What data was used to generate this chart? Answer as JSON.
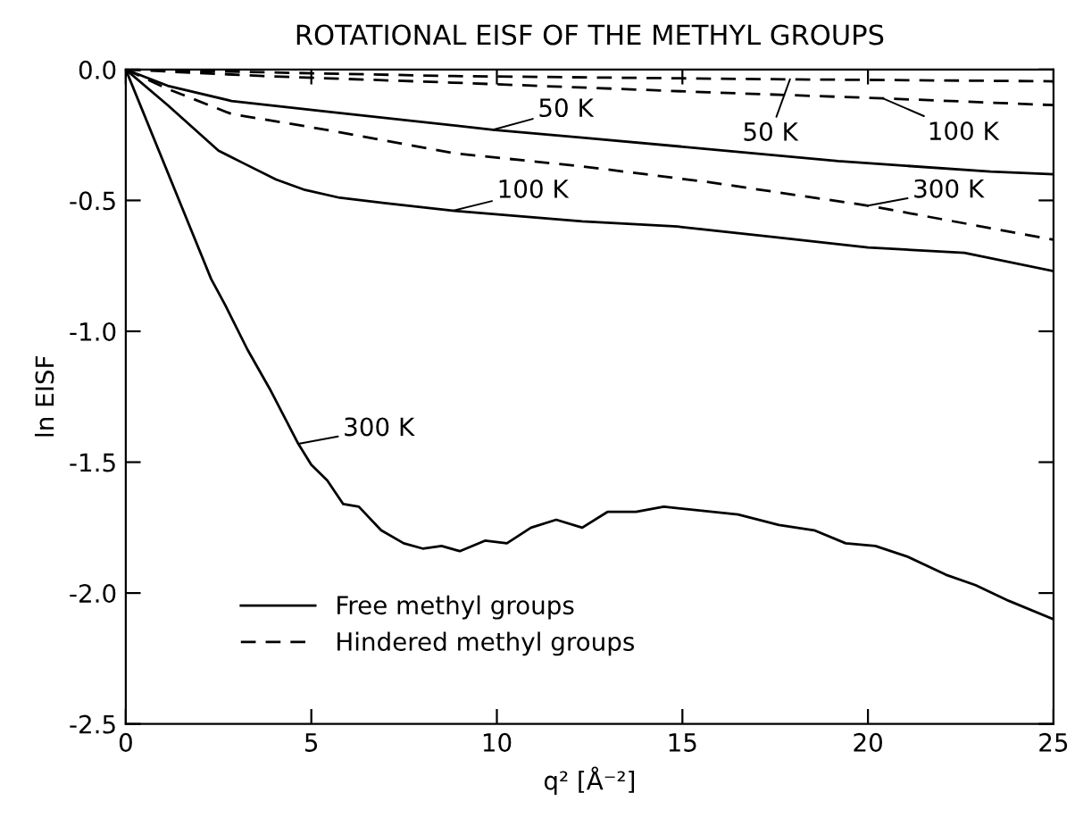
{
  "chart_data": {
    "type": "line",
    "title": "ROTATIONAL EISF OF THE METHYL GROUPS",
    "xlabel": "q² [Å⁻²]",
    "ylabel": "ln EISF",
    "xlim": [
      0,
      25
    ],
    "ylim": [
      -2.5,
      0
    ],
    "xticks": [
      0,
      5,
      10,
      15,
      20,
      25
    ],
    "yticks": [
      {
        "value": -2.5,
        "label": "-2.5"
      },
      {
        "value": -2.0,
        "label": "-2.0"
      },
      {
        "value": -1.5,
        "label": "-1.5"
      },
      {
        "value": -1.0,
        "label": "-1.0"
      },
      {
        "value": -0.5,
        "label": "-0.5"
      },
      {
        "value": 0.0,
        "label": "0.0"
      }
    ],
    "grid": false,
    "legend": "bottom",
    "marker": "none",
    "series": [
      {
        "name": "Free methyl groups",
        "color": "#000000",
        "line_style": "solid",
        "x": [
          0,
          1.13,
          2.85,
          5.4,
          9.9,
          12.3,
          15.4,
          19.2,
          23.3,
          25
        ],
        "values": [
          0,
          -0.062,
          -0.12,
          -0.16,
          -0.23,
          -0.26,
          -0.3,
          -0.35,
          -0.39,
          -0.4
        ]
      },
      {
        "color": "#000000",
        "line_style": "solid",
        "x": [
          0,
          1.13,
          2.5,
          3.2,
          4.05,
          4.83,
          5.77,
          6.97,
          8.86,
          12.3,
          14.87,
          17.45,
          20.0,
          22.6,
          25
        ],
        "values": [
          0,
          -0.136,
          -0.31,
          -0.36,
          -0.42,
          -0.46,
          -0.49,
          -0.51,
          -0.54,
          -0.58,
          -0.6,
          -0.64,
          -0.68,
          -0.7,
          -0.77
        ]
      },
      {
        "color": "#000000",
        "line_style": "solid",
        "x": [
          0,
          2.3,
          2.68,
          3.28,
          3.88,
          4.65,
          5.0,
          5.43,
          5.86,
          6.28,
          6.88,
          7.49,
          8.0,
          8.51,
          9.0,
          9.68,
          10.27,
          10.92,
          11.6,
          12.3,
          12.98,
          13.75,
          14.5,
          16.5,
          17.6,
          18.55,
          19.4,
          20.2,
          21.05,
          22.1,
          22.9,
          23.8,
          25
        ],
        "values": [
          0,
          -0.8,
          -0.9,
          -1.07,
          -1.22,
          -1.43,
          -1.51,
          -1.57,
          -1.66,
          -1.67,
          -1.76,
          -1.81,
          -1.83,
          -1.82,
          -1.84,
          -1.8,
          -1.81,
          -1.75,
          -1.72,
          -1.75,
          -1.69,
          -1.69,
          -1.67,
          -1.7,
          -1.74,
          -1.76,
          -1.81,
          -1.82,
          -1.86,
          -1.93,
          -1.97,
          -2.03,
          -2.1
        ]
      },
      {
        "name": "Hindered methyl groups",
        "color": "#000000",
        "line_style": "dashed",
        "x": [
          0,
          8.8,
          17.45,
          25
        ],
        "values": [
          0,
          -0.025,
          -0.037,
          -0.045
        ]
      },
      {
        "color": "#000000",
        "line_style": "dashed",
        "x": [
          0,
          3.7,
          8.8,
          15.7,
          20.4,
          25
        ],
        "values": [
          0,
          -0.025,
          -0.05,
          -0.087,
          -0.11,
          -0.136
        ]
      },
      {
        "color": "#000000",
        "line_style": "dashed",
        "x": [
          0,
          1.13,
          2.85,
          5.4,
          8.86,
          12.3,
          15.7,
          20.0,
          25
        ],
        "values": [
          0,
          -0.074,
          -0.17,
          -0.23,
          -0.32,
          -0.37,
          -0.43,
          -0.52,
          -0.65
        ]
      }
    ],
    "annotations": [
      {
        "text": "50 K",
        "x": 9.9,
        "y": -0.23
      },
      {
        "text": "100 K",
        "x": 8.8,
        "y": -0.54
      },
      {
        "text": "300 K",
        "x": 4.65,
        "y": -1.43
      },
      {
        "text": "50 K",
        "x": 17.9,
        "y": -0.037
      },
      {
        "text": "100 K",
        "x": 20.4,
        "y": -0.11
      },
      {
        "text": "300 K",
        "x": 20.0,
        "y": -0.52
      }
    ]
  }
}
